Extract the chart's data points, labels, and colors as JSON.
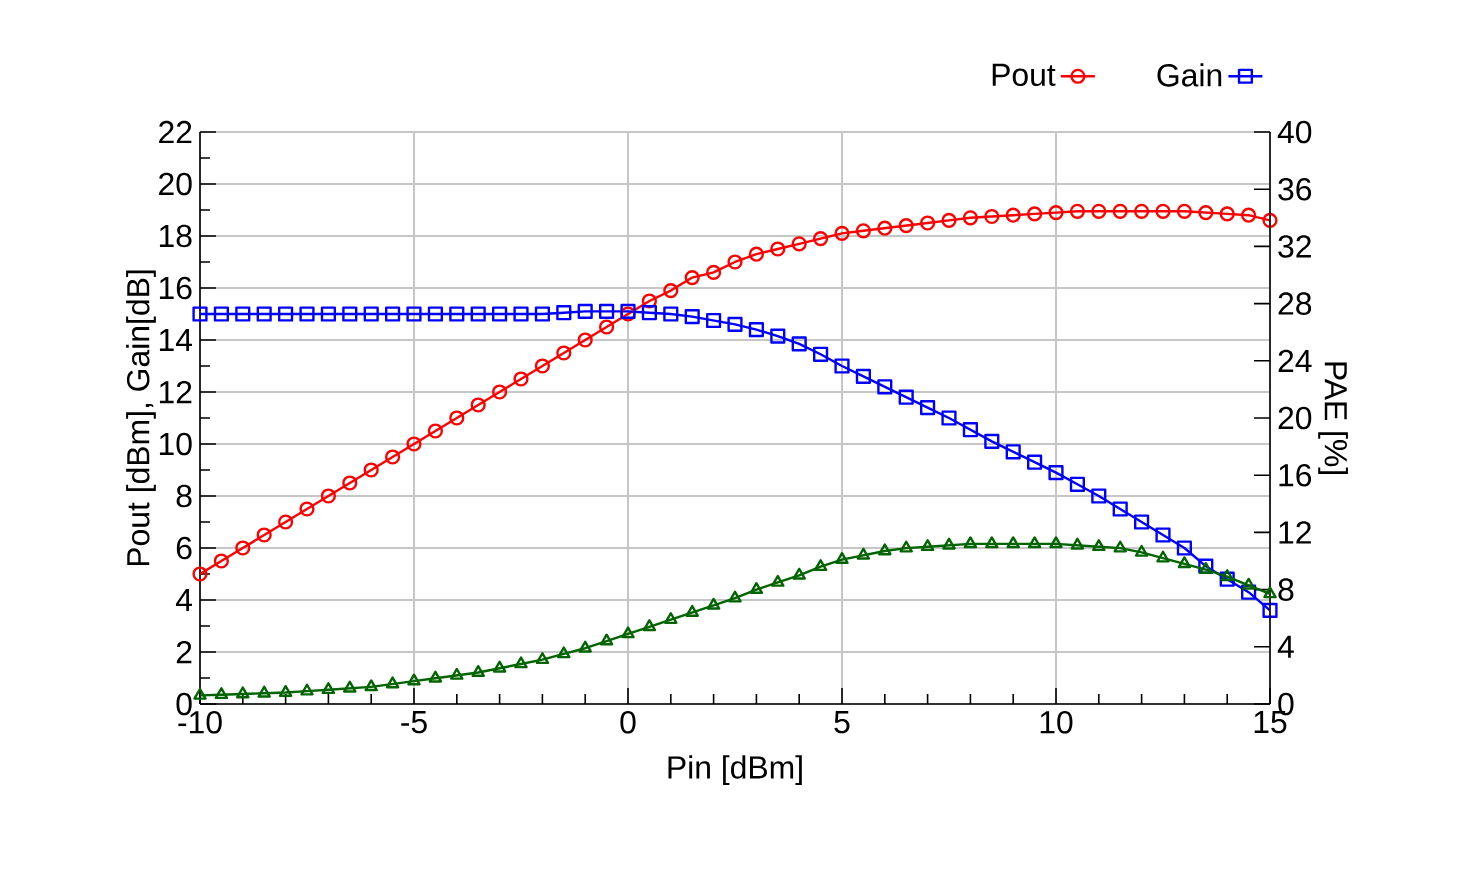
{
  "chart_data": {
    "type": "line",
    "xlabel": "Pin [dBm]",
    "ylabel": "Pout [dBm], Gain[dB]",
    "y2label": "PAE [%]",
    "x": [
      -10,
      -9.5,
      -9,
      -8.5,
      -8,
      -7.5,
      -7,
      -6.5,
      -6,
      -5.5,
      -5,
      -4.5,
      -4,
      -3.5,
      -3,
      -2.5,
      -2,
      -1.5,
      -1,
      -0.5,
      0,
      0.5,
      1,
      1.5,
      2,
      2.5,
      3,
      3.5,
      4,
      4.5,
      5,
      5.5,
      6,
      6.5,
      7,
      7.5,
      8,
      8.5,
      9,
      9.5,
      10,
      10.5,
      11,
      11.5,
      12,
      12.5,
      13,
      13.5,
      14,
      14.5,
      15
    ],
    "series": [
      {
        "name": "Pout",
        "color": "#ff0000",
        "marker": "circle",
        "values": [
          5,
          5.5,
          6,
          6.5,
          7,
          7.5,
          8,
          8.5,
          9,
          9.5,
          10,
          10.5,
          11,
          11.5,
          12,
          12.5,
          13,
          13.5,
          14,
          14.5,
          15,
          15.5,
          15.9,
          16.4,
          16.6,
          17,
          17.3,
          17.5,
          17.7,
          17.9,
          18.1,
          18.2,
          18.3,
          18.4,
          18.5,
          18.6,
          18.7,
          18.75,
          18.8,
          18.85,
          18.9,
          18.95,
          18.95,
          18.95,
          18.95,
          18.95,
          18.95,
          18.9,
          18.85,
          18.8,
          18.6
        ]
      },
      {
        "name": "Gain",
        "color": "#0000ff",
        "marker": "square",
        "values": [
          15,
          15,
          15,
          15,
          15,
          15,
          15,
          15,
          15,
          15,
          15,
          15,
          15,
          15,
          15,
          15,
          15,
          15.05,
          15.1,
          15.1,
          15.1,
          15.05,
          15,
          14.9,
          14.75,
          14.6,
          14.4,
          14.15,
          13.85,
          13.45,
          13,
          12.6,
          12.2,
          11.8,
          11.4,
          11,
          10.55,
          10.1,
          9.7,
          9.3,
          8.9,
          8.45,
          8,
          7.5,
          7,
          6.5,
          6,
          5.3,
          4.8,
          4.3,
          3.6
        ]
      },
      {
        "color": "#006400",
        "marker": "triangle",
        "axis": "y2",
        "values": [
          0.6,
          0.65,
          0.7,
          0.75,
          0.8,
          0.9,
          1,
          1.1,
          1.2,
          1.4,
          1.6,
          1.8,
          2,
          2.2,
          2.5,
          2.8,
          3.1,
          3.5,
          3.9,
          4.4,
          4.9,
          5.4,
          5.9,
          6.4,
          6.9,
          7.4,
          8,
          8.5,
          9,
          9.6,
          10.1,
          10.4,
          10.7,
          10.9,
          11,
          11.1,
          11.2,
          11.2,
          11.2,
          11.2,
          11.2,
          11.1,
          11,
          10.9,
          10.6,
          10.2,
          9.8,
          9.4,
          8.9,
          8.3,
          7.7
        ]
      }
    ],
    "xlim": [
      -10,
      15
    ],
    "xticks": [
      -10,
      -5,
      0,
      5,
      10,
      15
    ],
    "ylim": [
      0,
      22
    ],
    "yticks": [
      0,
      2,
      4,
      6,
      8,
      10,
      12,
      14,
      16,
      18,
      20,
      22
    ],
    "y2lim": [
      0,
      40
    ],
    "y2ticks": [
      0,
      4,
      8,
      12,
      16,
      20,
      24,
      28,
      32,
      36,
      40
    ],
    "grid": true,
    "legend": "top",
    "line_style": "solid"
  }
}
